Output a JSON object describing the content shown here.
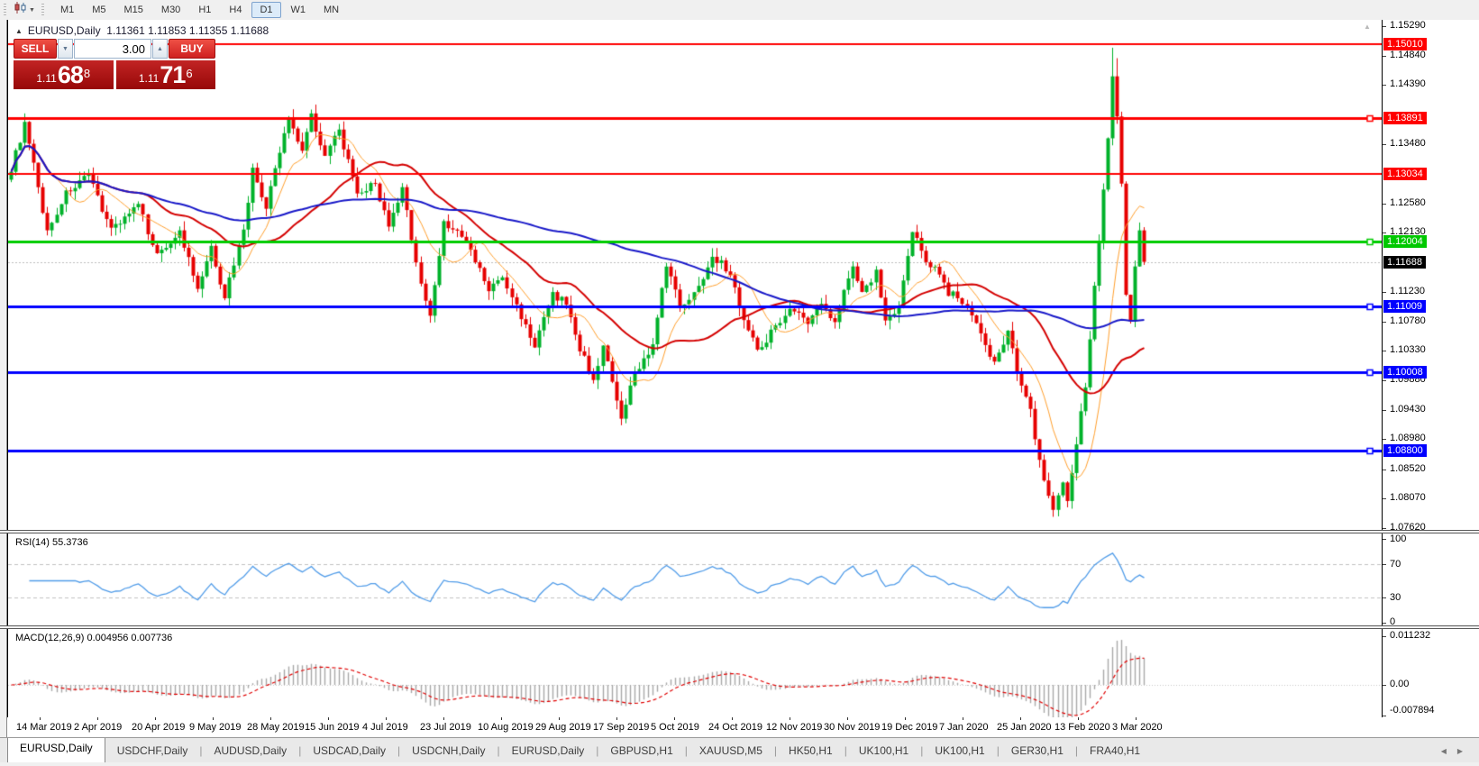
{
  "toolbar": {
    "timeframes": [
      "M1",
      "M5",
      "M15",
      "M30",
      "H1",
      "H4",
      "D1",
      "W1",
      "MN"
    ],
    "active": "D1"
  },
  "icons": {
    "caret_down": "▼",
    "caret_up": "▲",
    "collapse": "▲",
    "scroll_left": "◀",
    "scroll_right": "▶",
    "scroll_anchor": "▲"
  },
  "chart": {
    "title": {
      "symbol_period": "EURUSD,Daily",
      "ohlc": "1.11361 1.11853 1.11355 1.11688"
    },
    "one_click": {
      "sell_label": "SELL",
      "buy_label": "BUY",
      "volume": "3.00",
      "sell_price": {
        "prefix": "1.11",
        "big": "68",
        "pip": "8"
      },
      "buy_price": {
        "prefix": "1.11",
        "big": "71",
        "pip": "6"
      }
    },
    "price_axis": {
      "ticks": [
        "1.15290",
        "1.14840",
        "1.14390",
        "1.13480",
        "1.12580",
        "1.12130",
        "1.11230",
        "1.10780",
        "1.10330",
        "1.09880",
        "1.09430",
        "1.08980",
        "1.08520",
        "1.08070",
        "1.07620"
      ],
      "current": {
        "price": 1.11688,
        "label": "1.11688",
        "bg": "#000000"
      }
    }
  },
  "rsi": {
    "label": "RSI(14) 55.3736",
    "value": 55.3736,
    "axis": [
      {
        "v": 100,
        "label": "100"
      },
      {
        "v": 70,
        "label": "70"
      },
      {
        "v": 30,
        "label": "30"
      },
      {
        "v": 0,
        "label": "0"
      }
    ],
    "dashed_levels": [
      70,
      30
    ]
  },
  "macd": {
    "label": "MACD(12,26,9) 0.004956 0.007736",
    "values": [
      0.004956,
      0.007736
    ],
    "axis": [
      {
        "v": 0.011232,
        "label": "0.011232"
      },
      {
        "v": 0,
        "label": "0.00"
      },
      {
        "v": -0.007894,
        "label": "-0.007894"
      }
    ]
  },
  "date_axis": {
    "labels": [
      "14 Mar 2019",
      "2 Apr 2019",
      "20 Apr 2019",
      "9 May 2019",
      "28 May 2019",
      "15 Jun 2019",
      "4 Jul 2019",
      "23 Jul 2019",
      "10 Aug 2019",
      "29 Aug 2019",
      "17 Sep 2019",
      "5 Oct 2019",
      "24 Oct 2019",
      "12 Nov 2019",
      "30 Nov 2019",
      "19 Dec 2019",
      "7 Jan 2020",
      "25 Jan 2020",
      "13 Feb 2020",
      "3 Mar 2020"
    ]
  },
  "tabbar": {
    "active_index": 0,
    "tabs": [
      "EURUSD,Daily",
      "USDCHF,Daily",
      "AUDUSD,Daily",
      "USDCAD,Daily",
      "USDCNH,Daily",
      "EURUSD,Daily",
      "GBPUSD,H1",
      "XAUUSD,M5",
      "HK50,H1",
      "UK100,H1",
      "UK100,H1",
      "GER30,H1",
      "FRA40,H1"
    ]
  },
  "chart_data": {
    "type": "candlestick",
    "symbol": "EURUSD",
    "period": "Daily",
    "ohlc_display": {
      "open": 1.11361,
      "high": 1.11853,
      "low": 1.11355,
      "close": 1.11688
    },
    "y_range": [
      1.0759,
      1.1539
    ],
    "bars": 250,
    "anchors": [
      [
        0,
        1.131
      ],
      [
        3,
        1.138
      ],
      [
        8,
        1.1215
      ],
      [
        12,
        1.1275
      ],
      [
        17,
        1.13
      ],
      [
        22,
        1.122
      ],
      [
        28,
        1.1255
      ],
      [
        32,
        1.118
      ],
      [
        37,
        1.1215
      ],
      [
        41,
        1.1125
      ],
      [
        44,
        1.119
      ],
      [
        47,
        1.1115
      ],
      [
        51,
        1.122
      ],
      [
        53,
        1.131
      ],
      [
        56,
        1.125
      ],
      [
        58,
        1.131
      ],
      [
        61,
        1.139
      ],
      [
        64,
        1.134
      ],
      [
        66,
        1.1395
      ],
      [
        69,
        1.133
      ],
      [
        72,
        1.137
      ],
      [
        76,
        1.127
      ],
      [
        80,
        1.129
      ],
      [
        83,
        1.122
      ],
      [
        86,
        1.128
      ],
      [
        90,
        1.1135
      ],
      [
        92,
        1.1085
      ],
      [
        95,
        1.123
      ],
      [
        100,
        1.12
      ],
      [
        105,
        1.1125
      ],
      [
        108,
        1.1145
      ],
      [
        112,
        1.1085
      ],
      [
        115,
        1.104
      ],
      [
        119,
        1.112
      ],
      [
        122,
        1.1105
      ],
      [
        125,
        1.1035
      ],
      [
        128,
        1.099
      ],
      [
        130,
        1.104
      ],
      [
        134,
        1.0926
      ],
      [
        137,
        1.1
      ],
      [
        141,
        1.104
      ],
      [
        144,
        1.1165
      ],
      [
        147,
        1.11
      ],
      [
        151,
        1.113
      ],
      [
        154,
        1.118
      ],
      [
        158,
        1.115
      ],
      [
        161,
        1.108
      ],
      [
        164,
        1.1035
      ],
      [
        168,
        1.107
      ],
      [
        171,
        1.11
      ],
      [
        175,
        1.1075
      ],
      [
        178,
        1.1105
      ],
      [
        181,
        1.108
      ],
      [
        185,
        1.1165
      ],
      [
        187,
        1.112
      ],
      [
        190,
        1.1155
      ],
      [
        192,
        1.108
      ],
      [
        195,
        1.11
      ],
      [
        198,
        1.1215
      ],
      [
        201,
        1.117
      ],
      [
        203,
        1.1165
      ],
      [
        206,
        1.112
      ],
      [
        208,
        1.1115
      ],
      [
        211,
        1.1085
      ],
      [
        214,
        1.104
      ],
      [
        216,
        1.1015
      ],
      [
        219,
        1.1065
      ],
      [
        221,
        1.1
      ],
      [
        224,
        1.0945
      ],
      [
        226,
        1.0865
      ],
      [
        229,
        1.079
      ],
      [
        231,
        1.0835
      ],
      [
        232,
        1.0805
      ],
      [
        234,
        1.089
      ],
      [
        236,
        1.098
      ],
      [
        238,
        1.113
      ],
      [
        240,
        1.128
      ],
      [
        242,
        1.145
      ],
      [
        243,
        1.139
      ],
      [
        244,
        1.129
      ],
      [
        245,
        1.112
      ],
      [
        246,
        1.1075
      ],
      [
        247,
        1.1165
      ],
      [
        248,
        1.1215
      ],
      [
        249,
        1.11688
      ]
    ],
    "special_highs": {
      "242": 1.1496,
      "243": 1.148
    },
    "levels": [
      {
        "price": 1.1501,
        "label": "1.15010",
        "color": "#FF0000",
        "thickness": 2,
        "handle": false
      },
      {
        "price": 1.13891,
        "label": "1.13891",
        "color": "#FF0000",
        "thickness": 3,
        "handle": true
      },
      {
        "price": 1.13034,
        "label": "1.13034",
        "color": "#FF0000",
        "thickness": 2,
        "handle": false
      },
      {
        "price": 1.12004,
        "label": "1.12004",
        "color": "#00CC00",
        "thickness": 3,
        "handle": true
      },
      {
        "price": 1.11009,
        "label": "1.11009",
        "color": "#0000FF",
        "thickness": 3,
        "handle": true
      },
      {
        "price": 1.10008,
        "label": "1.10008",
        "color": "#0000FF",
        "thickness": 3,
        "handle": true
      },
      {
        "price": 1.088,
        "label": "1.08800",
        "color": "#0000FF",
        "thickness": 3,
        "handle": true
      }
    ],
    "moving_averages": [
      {
        "name": "fast",
        "period": 10,
        "color": "#FF9E2C",
        "width": 1
      },
      {
        "name": "mid",
        "period": 30,
        "color": "#D40000",
        "width": 2
      },
      {
        "name": "slow",
        "period": 90,
        "color": "#1717C8",
        "width": 2
      }
    ],
    "colors": {
      "up": "#00B22A",
      "down": "#E60000",
      "rsi_line": "#4F9BE8",
      "macd_hist": "#A8A8A8",
      "macd_signal": "#E00000",
      "current_price_line": "#BDBDBD"
    },
    "indicators": [
      {
        "name": "RSI",
        "period": 14,
        "value": 55.3736
      },
      {
        "name": "MACD",
        "fast": 12,
        "slow": 26,
        "signal": 9,
        "values": [
          0.004956,
          0.007736
        ]
      }
    ]
  }
}
